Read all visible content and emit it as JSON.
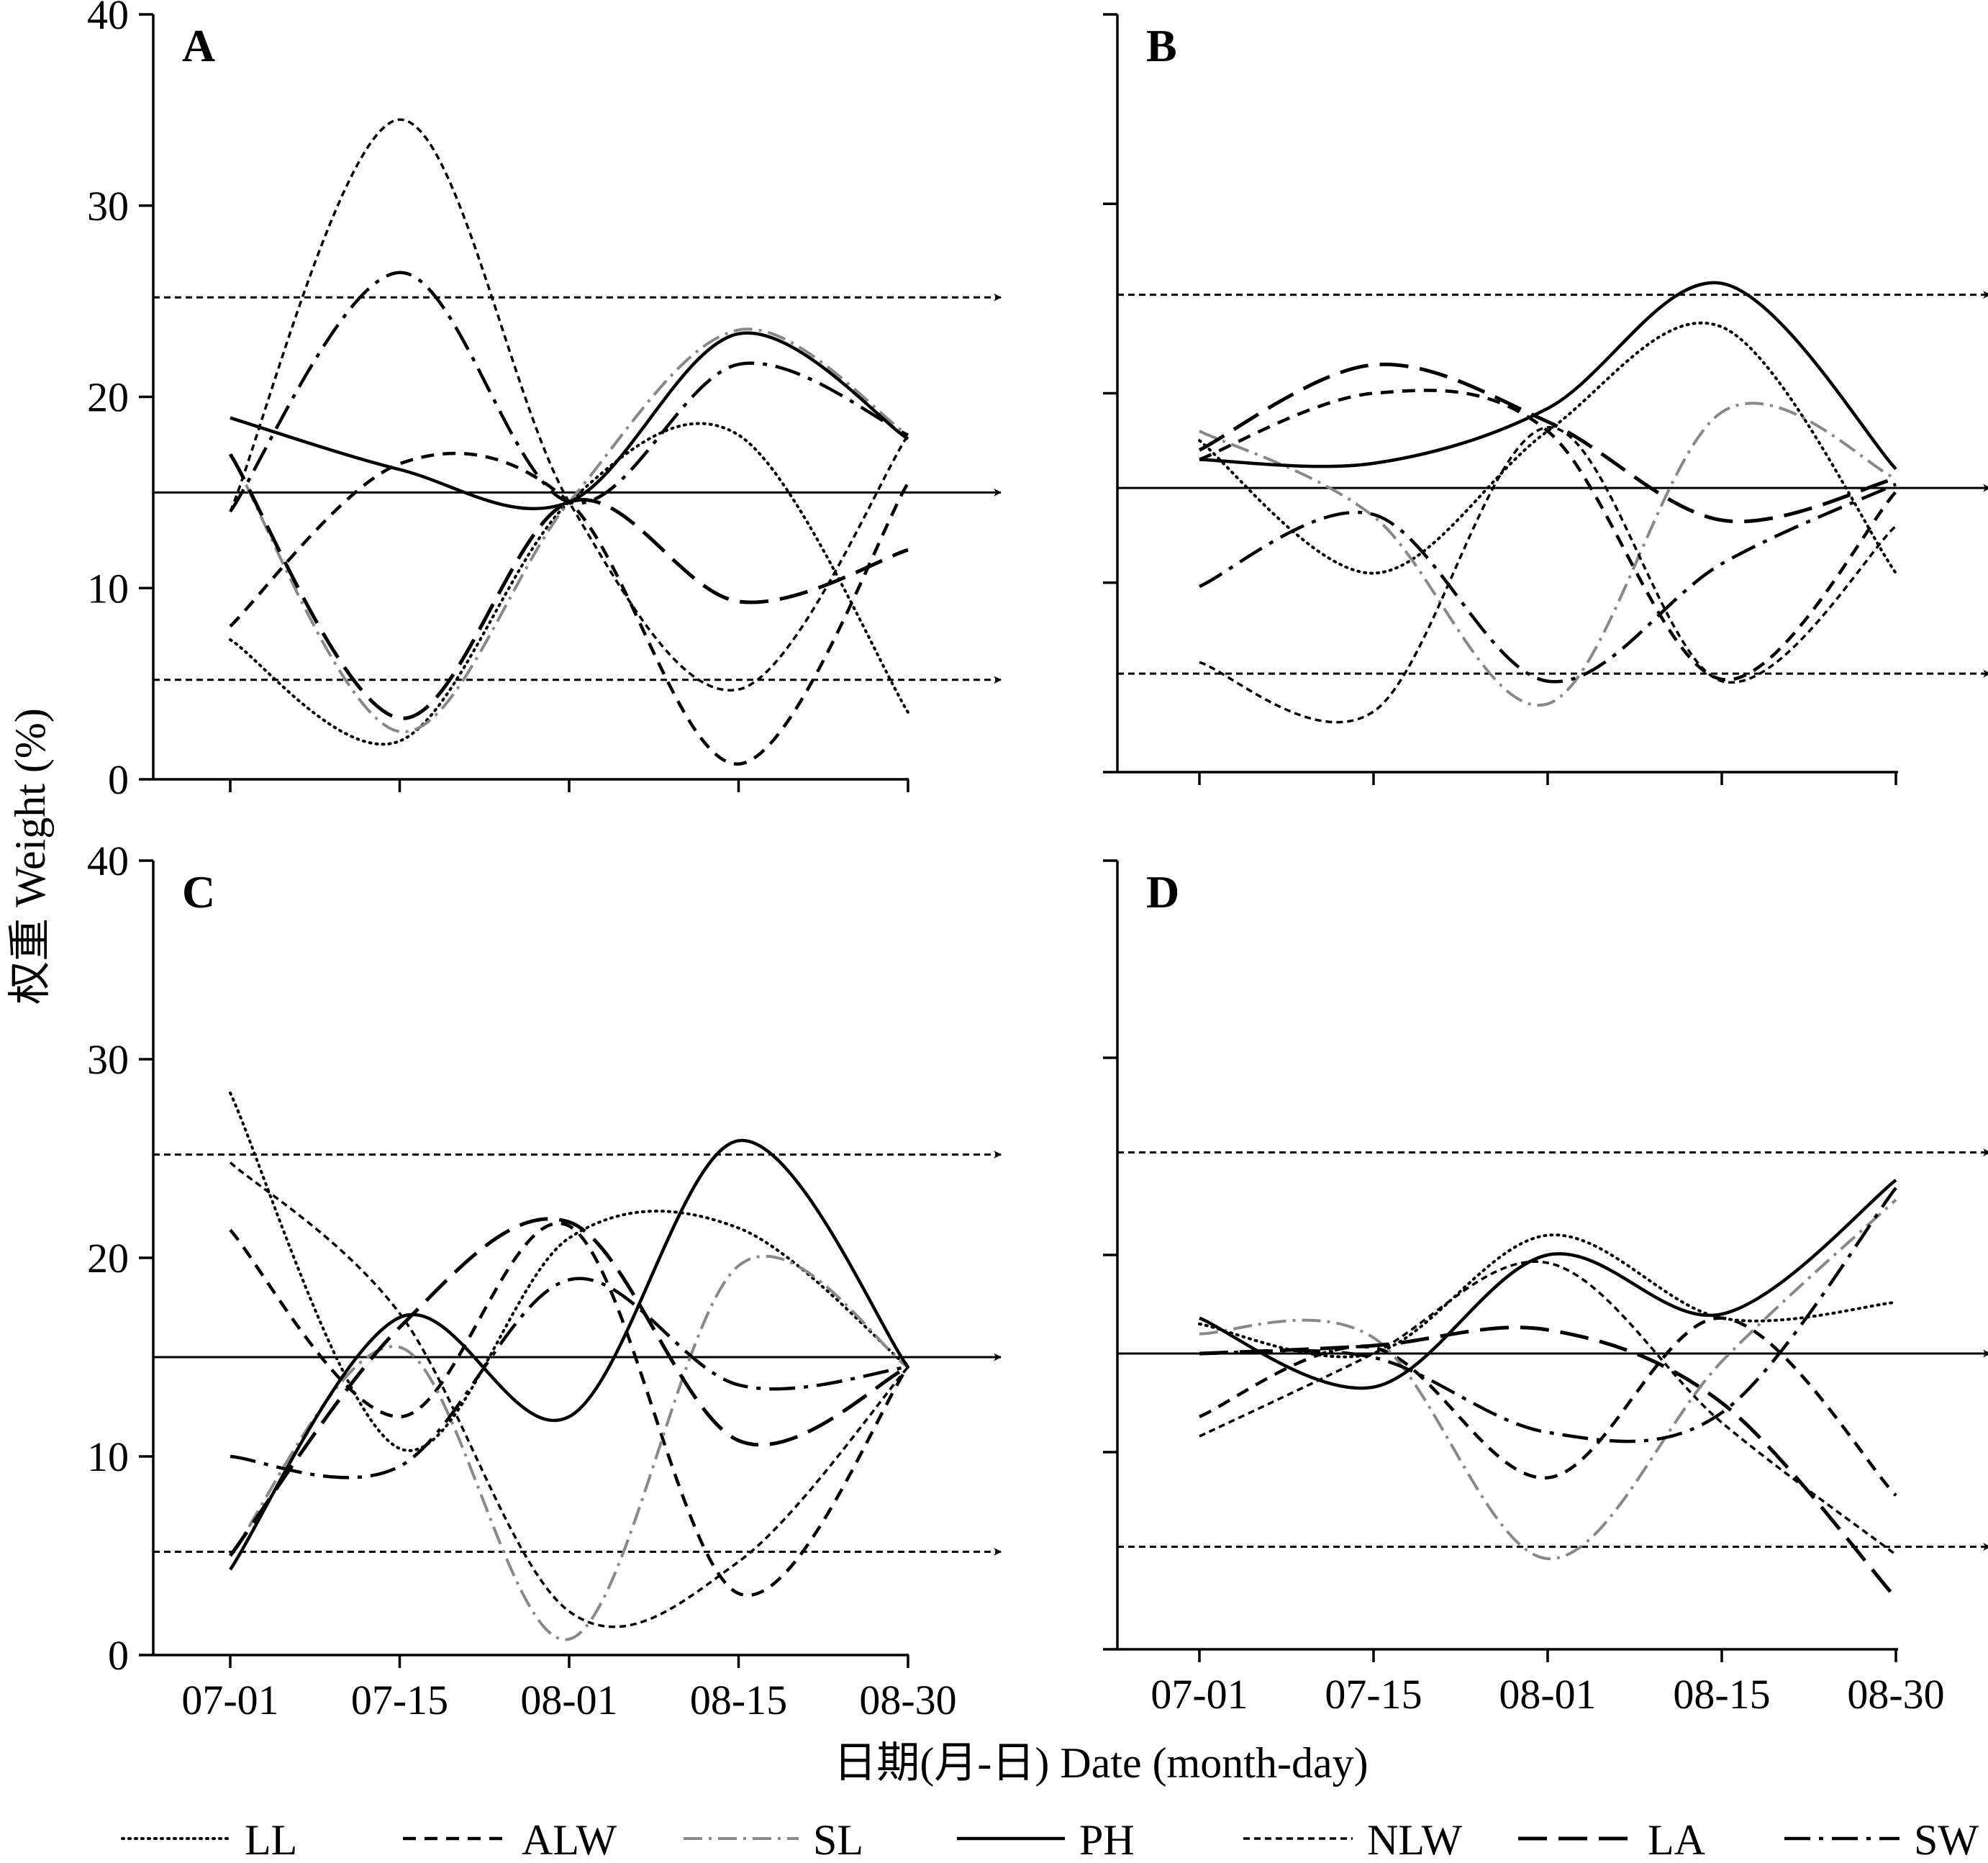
{
  "chart_data": {
    "type": "line",
    "ylabel": "权重 Weight (%)",
    "xlabel": "日期(月-日) Date (month-day)",
    "ylim": [
      0,
      40
    ],
    "yticks": [
      "0",
      "10",
      "20",
      "30",
      "40"
    ],
    "xticks": [
      "07-01",
      "07-15",
      "08-01",
      "08-15",
      "08-30"
    ],
    "x": [
      "07-01",
      "07-15",
      "08-01",
      "08-15",
      "08-30"
    ],
    "reference_lines": {
      "upper": 25.2,
      "mean": 15.0,
      "lower": 5.2
    },
    "legend": [
      {
        "name": "LL",
        "style": "dotted"
      },
      {
        "name": "ALW",
        "style": "short-dash"
      },
      {
        "name": "SL",
        "style": "gray-dash-dot"
      },
      {
        "name": "PH",
        "style": "solid"
      },
      {
        "name": "NLW",
        "style": "fine-dash"
      },
      {
        "name": "LA",
        "style": "long-dash"
      },
      {
        "name": "SW",
        "style": "long-dash-dot"
      }
    ],
    "panels": [
      {
        "label": "A",
        "show_yticks": true,
        "show_xticks": false,
        "series": [
          {
            "name": "LL",
            "values": [
              7.3,
              2.0,
              14.5,
              18.0,
              3.5
            ]
          },
          {
            "name": "ALW",
            "values": [
              8.0,
              16.5,
              14.5,
              0.8,
              15.5
            ]
          },
          {
            "name": "SL",
            "values": [
              17.0,
              2.5,
              14.5,
              23.5,
              18.0
            ]
          },
          {
            "name": "PH",
            "values": [
              18.9,
              16.2,
              14.5,
              23.3,
              17.8
            ]
          },
          {
            "name": "NLW",
            "values": [
              14.0,
              34.5,
              14.5,
              4.7,
              18.0
            ]
          },
          {
            "name": "LA",
            "values": [
              17.0,
              3.2,
              14.5,
              9.3,
              12.0
            ]
          },
          {
            "name": "SW",
            "values": [
              14.0,
              26.5,
              14.5,
              21.7,
              18.0
            ]
          }
        ]
      },
      {
        "label": "B",
        "show_yticks": false,
        "show_xticks": false,
        "series": [
          {
            "name": "LL",
            "values": [
              17.5,
              10.5,
              18.0,
              23.5,
              10.5
            ]
          },
          {
            "name": "ALW",
            "values": [
              16.5,
              20.0,
              18.0,
              4.9,
              14.8
            ]
          },
          {
            "name": "SL",
            "values": [
              18.0,
              13.5,
              3.6,
              19.0,
              15.5
            ]
          },
          {
            "name": "PH",
            "values": [
              16.5,
              16.3,
              19.2,
              25.8,
              16.0
            ]
          },
          {
            "name": "NLW",
            "values": [
              5.8,
              3.2,
              18.2,
              4.8,
              13.0
            ]
          },
          {
            "name": "LA",
            "values": [
              17.0,
              21.5,
              18.5,
              13.3,
              15.5
            ]
          },
          {
            "name": "SW",
            "values": [
              9.8,
              13.6,
              4.8,
              11.0,
              15.2
            ]
          }
        ]
      },
      {
        "label": "C",
        "show_yticks": true,
        "show_xticks": true,
        "series": [
          {
            "name": "LL",
            "values": [
              28.3,
              10.4,
              21.0,
              21.5,
              14.5
            ]
          },
          {
            "name": "ALW",
            "values": [
              21.4,
              12.0,
              21.6,
              3.1,
              14.5
            ]
          },
          {
            "name": "SL",
            "values": [
              5.0,
              15.5,
              0.8,
              19.6,
              14.5
            ]
          },
          {
            "name": "PH",
            "values": [
              4.3,
              17.0,
              12.0,
              25.9,
              14.5
            ]
          },
          {
            "name": "NLW",
            "values": [
              24.8,
              17.2,
              2.2,
              4.7,
              14.5
            ]
          },
          {
            "name": "LA",
            "values": [
              5.0,
              16.5,
              21.8,
              10.8,
              14.5
            ]
          },
          {
            "name": "SW",
            "values": [
              10.0,
              9.5,
              18.9,
              13.6,
              14.5
            ]
          }
        ]
      },
      {
        "label": "D",
        "show_yticks": false,
        "show_xticks": true,
        "series": [
          {
            "name": "LL",
            "values": [
              16.5,
              15.0,
              21.0,
              16.8,
              17.6
            ]
          },
          {
            "name": "ALW",
            "values": [
              11.8,
              15.3,
              8.7,
              16.8,
              7.8
            ]
          },
          {
            "name": "SL",
            "values": [
              16.0,
              15.8,
              4.6,
              14.6,
              22.8
            ]
          },
          {
            "name": "PH",
            "values": [
              16.8,
              13.3,
              20.0,
              17.0,
              23.8
            ]
          },
          {
            "name": "NLW",
            "values": [
              10.8,
              15.0,
              19.6,
              11.5,
              4.8
            ]
          },
          {
            "name": "LA",
            "values": [
              15.0,
              15.4,
              16.2,
              12.5,
              2.6
            ]
          },
          {
            "name": "SW",
            "values": [
              15.0,
              14.8,
              11.0,
              12.0,
              23.4
            ]
          }
        ]
      }
    ]
  }
}
